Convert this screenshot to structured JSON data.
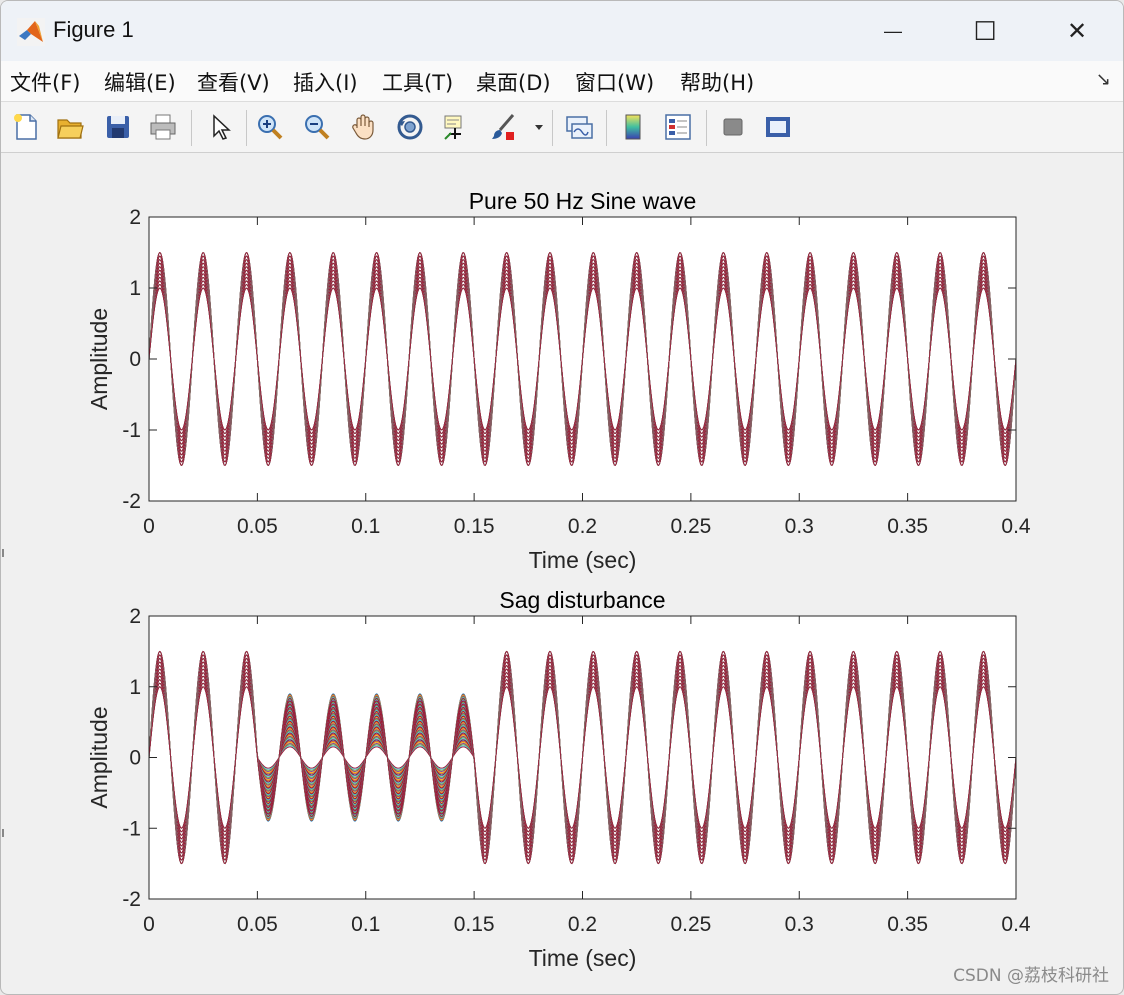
{
  "window": {
    "title": "Figure 1",
    "minimize_glyph": "—",
    "maximize_glyph": "☐",
    "close_glyph": "✕"
  },
  "menu": {
    "items": [
      "文件(F)",
      "编辑(E)",
      "查看(V)",
      "插入(I)",
      "工具(T)",
      "桌面(D)",
      "窗口(W)",
      "帮助(H)"
    ],
    "dock_arrow": "↘"
  },
  "toolbar": {
    "buttons": [
      "new-file-icon",
      "open-folder-icon",
      "save-icon",
      "print-icon",
      "pointer-icon",
      "zoom-in-icon",
      "zoom-out-icon",
      "pan-hand-icon",
      "rotate-3d-icon",
      "data-cursor-icon",
      "brush-icon",
      "link-plot-icon",
      "colorbar-icon",
      "legend-icon",
      "hide-plot-tools-icon",
      "show-plot-tools-icon"
    ]
  },
  "watermark": "CSDN @荔枝科研社",
  "chart_data": [
    {
      "type": "line",
      "title": "Pure 50 Hz Sine wave",
      "xlabel": "Time (sec)",
      "ylabel": "Amplitude",
      "xlim": [
        0,
        0.4
      ],
      "ylim": [
        -2,
        2
      ],
      "xticks": [
        "0",
        "0.05",
        "0.1",
        "0.15",
        "0.2",
        "0.25",
        "0.3",
        "0.35",
        "0.4"
      ],
      "yticks": [
        "-2",
        "-1",
        "0",
        "1",
        "2"
      ],
      "frequency_hz": 50,
      "amplitudes": [
        1.0,
        1.05,
        1.1,
        1.15,
        1.2,
        1.25,
        1.3,
        1.35,
        1.4,
        1.45,
        1.5
      ],
      "series_colors": [
        "#0072BD",
        "#D95319",
        "#EDB120",
        "#7E2F8E",
        "#77AC30",
        "#4DBEEE",
        "#A2142F"
      ]
    },
    {
      "type": "line",
      "title": "Sag disturbance",
      "xlabel": "Time (sec)",
      "ylabel": "Amplitude",
      "xlim": [
        0,
        0.4
      ],
      "ylim": [
        -2,
        2
      ],
      "xticks": [
        "0",
        "0.05",
        "0.1",
        "0.15",
        "0.2",
        "0.25",
        "0.3",
        "0.35",
        "0.4"
      ],
      "yticks": [
        "-2",
        "-1",
        "0",
        "1",
        "2"
      ],
      "frequency_hz": 50,
      "amplitudes": [
        1.0,
        1.05,
        1.1,
        1.15,
        1.2,
        1.25,
        1.3,
        1.35,
        1.4,
        1.45,
        1.5
      ],
      "sag_interval": [
        0.05,
        0.15
      ],
      "sag_depth_range": [
        0.1,
        0.9
      ],
      "series_colors": [
        "#0072BD",
        "#D95319",
        "#EDB120",
        "#7E2F8E",
        "#77AC30",
        "#4DBEEE",
        "#A2142F"
      ]
    }
  ]
}
